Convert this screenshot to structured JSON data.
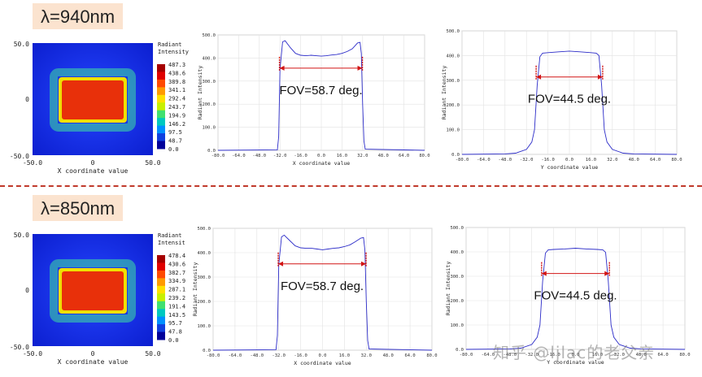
{
  "sections": [
    {
      "label": "λ=940nm",
      "heatmap": {
        "title": "Radiant\nIntensity",
        "xlabel": "X coordinate value",
        "xticks": [
          "-50.0",
          "0",
          "50.0"
        ],
        "yticks": [
          "50.0",
          "0",
          "-50.0"
        ],
        "colorbar": [
          "487.3",
          "438.6",
          "389.8",
          "341.1",
          "292.4",
          "243.7",
          "194.9",
          "146.2",
          "97.5",
          "48.7",
          "0.0"
        ]
      },
      "profiles": [
        {
          "xlabel": "X coordinate value",
          "ylabel": "Radiant Intensity",
          "fov": "FOV=58.7 deg."
        },
        {
          "xlabel": "Y coordinate value",
          "ylabel": "Radiant Intensity",
          "fov": "FOV=44.5 deg."
        }
      ]
    },
    {
      "label": "λ=850nm",
      "heatmap": {
        "title": "Radiant\nIntensit",
        "xlabel": "X coordinate value",
        "xticks": [
          "-50.0",
          "0",
          "50.0"
        ],
        "yticks": [
          "50.0",
          "0",
          "-50.0"
        ],
        "colorbar": [
          "478.4",
          "430.6",
          "382.7",
          "334.9",
          "287.1",
          "239.2",
          "191.4",
          "143.5",
          "95.7",
          "47.8",
          "0.0"
        ]
      },
      "profiles": [
        {
          "xlabel": "X coordinate value",
          "ylabel": "Radiant Intensity",
          "fov": "FOV=58.7 deg."
        },
        {
          "xlabel": "Y coordinate value",
          "ylabel": "Radiant Intensity",
          "fov": "FOV=44.5 deg."
        }
      ]
    }
  ],
  "watermark": "知乎 @ljlac的老父亲",
  "chart_data": [
    {
      "type": "line",
      "xlabel": "X coordinate value",
      "ylabel": "Radiant Intensity",
      "xlim": [
        -80,
        80
      ],
      "ylim": [
        0,
        500
      ],
      "xticks": [
        -80,
        -64,
        -48,
        -32,
        -16,
        0,
        16,
        32,
        48,
        64,
        80
      ],
      "yticks": [
        0,
        100,
        200,
        300,
        400,
        500
      ],
      "x": [
        -80,
        -34,
        -33,
        -32,
        -30,
        -28,
        -24,
        -20,
        -16,
        -12,
        -8,
        -4,
        0,
        4,
        8,
        12,
        16,
        20,
        24,
        28,
        30,
        31,
        32,
        33,
        34,
        80
      ],
      "y": [
        0,
        2,
        60,
        350,
        470,
        475,
        445,
        420,
        412,
        410,
        412,
        410,
        408,
        410,
        413,
        415,
        420,
        428,
        440,
        465,
        468,
        420,
        200,
        40,
        5,
        0
      ],
      "annotation": "FOV=58.7 deg."
    },
    {
      "type": "line",
      "xlabel": "Y coordinate value",
      "ylabel": "Radiant Intensity",
      "xlim": [
        -80,
        80
      ],
      "ylim": [
        0,
        500
      ],
      "xticks": [
        -80,
        -64,
        -48,
        -32,
        -16,
        0,
        16,
        32,
        48,
        64,
        80
      ],
      "yticks": [
        0,
        100,
        200,
        300,
        400,
        500
      ],
      "x": [
        -80,
        -48,
        -40,
        -32,
        -28,
        -26,
        -24,
        -22,
        -20,
        -16,
        -8,
        0,
        8,
        16,
        20,
        22,
        24,
        26,
        28,
        32,
        40,
        48,
        80
      ],
      "y": [
        0,
        2,
        5,
        20,
        50,
        100,
        280,
        395,
        410,
        412,
        415,
        418,
        415,
        412,
        410,
        400,
        280,
        100,
        50,
        20,
        5,
        2,
        0
      ],
      "annotation": "FOV=44.5 deg."
    },
    {
      "type": "line",
      "xlabel": "X coordinate value",
      "ylabel": "Radiant Intensity",
      "xlim": [
        -80,
        80
      ],
      "ylim": [
        0,
        500
      ],
      "xticks": [
        -80,
        -64,
        -48,
        -32,
        -16,
        0,
        16,
        32,
        48,
        64,
        80
      ],
      "yticks": [
        0,
        100,
        200,
        300,
        400,
        500
      ],
      "x": [
        -80,
        -34,
        -33,
        -32,
        -30,
        -28,
        -24,
        -20,
        -16,
        -12,
        -8,
        -4,
        0,
        4,
        8,
        12,
        16,
        20,
        24,
        28,
        30,
        31,
        32,
        33,
        34,
        80
      ],
      "y": [
        0,
        2,
        60,
        350,
        465,
        472,
        450,
        428,
        420,
        418,
        418,
        415,
        412,
        415,
        418,
        420,
        425,
        432,
        445,
        460,
        462,
        410,
        200,
        40,
        5,
        0
      ],
      "annotation": "FOV=58.7 deg."
    },
    {
      "type": "line",
      "xlabel": "Y coordinate value",
      "ylabel": "Radiant Intensity",
      "xlim": [
        -80,
        80
      ],
      "ylim": [
        0,
        500
      ],
      "xticks": [
        -80,
        -64,
        -48,
        -32,
        -16,
        0,
        16,
        32,
        48,
        64,
        80
      ],
      "yticks": [
        0,
        100,
        200,
        300,
        400,
        500
      ],
      "x": [
        -80,
        -48,
        -40,
        -32,
        -28,
        -26,
        -24,
        -22,
        -20,
        -16,
        -8,
        0,
        8,
        16,
        20,
        22,
        24,
        26,
        28,
        32,
        40,
        48,
        80
      ],
      "y": [
        0,
        2,
        5,
        20,
        50,
        100,
        280,
        395,
        408,
        410,
        412,
        415,
        412,
        410,
        408,
        398,
        280,
        100,
        50,
        20,
        5,
        2,
        0
      ],
      "annotation": "FOV=44.5 deg."
    }
  ]
}
